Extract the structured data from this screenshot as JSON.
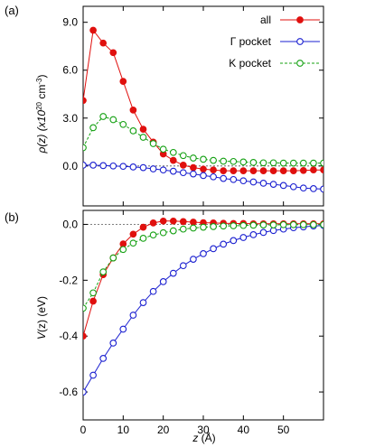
{
  "chart_data": [
    {
      "panel_label": "(a)",
      "type": "line",
      "ylabel": {
        "main": "ρ(z) (x10",
        "sup_exp": "20",
        "mid": " cm",
        "sup_unit": "-3",
        "end": ")"
      },
      "xlim": [
        0,
        60
      ],
      "ylim": [
        -2.5,
        10.0
      ],
      "yticks": [
        0.0,
        3.0,
        6.0,
        9.0
      ],
      "ytick_labels": [
        "0.0",
        "3.0",
        "6.0",
        "9.0"
      ],
      "legend_position": "top-right",
      "series": [
        {
          "name": "all",
          "color": "#e0100e",
          "marker": "filled-circle",
          "line": "solid",
          "x": [
            0,
            2.5,
            5,
            7.5,
            10,
            12.5,
            15,
            17.5,
            20,
            22.5,
            25,
            27.5,
            30,
            32.5,
            35,
            37.5,
            40,
            42.5,
            45,
            47.5,
            50,
            52.5,
            55,
            57.5,
            60
          ],
          "y": [
            4.1,
            8.5,
            7.7,
            7.1,
            5.3,
            3.5,
            2.3,
            1.5,
            0.75,
            0.35,
            0.05,
            -0.1,
            -0.2,
            -0.25,
            -0.3,
            -0.3,
            -0.3,
            -0.3,
            -0.3,
            -0.3,
            -0.3,
            -0.3,
            -0.28,
            -0.25,
            -0.25
          ]
        },
        {
          "name": "Γ pocket",
          "color": "#1a1fd0",
          "marker": "open-circle",
          "line": "solid",
          "x": [
            0,
            2.5,
            5,
            7.5,
            10,
            12.5,
            15,
            17.5,
            20,
            22.5,
            25,
            27.5,
            30,
            32.5,
            35,
            37.5,
            40,
            42.5,
            45,
            47.5,
            50,
            52.5,
            55,
            57.5,
            60
          ],
          "y": [
            0.05,
            0.05,
            0.02,
            0.0,
            -0.02,
            -0.06,
            -0.1,
            -0.18,
            -0.25,
            -0.33,
            -0.42,
            -0.5,
            -0.6,
            -0.68,
            -0.78,
            -0.85,
            -0.93,
            -1.0,
            -1.08,
            -1.15,
            -1.22,
            -1.3,
            -1.38,
            -1.42,
            -1.45
          ]
        },
        {
          "name": "K pocket",
          "color": "#14a012",
          "marker": "open-circle",
          "line": "dashed",
          "x": [
            0,
            2.5,
            5,
            7.5,
            10,
            12.5,
            15,
            17.5,
            20,
            22.5,
            25,
            27.5,
            30,
            32.5,
            35,
            37.5,
            40,
            42.5,
            45,
            47.5,
            50,
            52.5,
            55,
            57.5,
            60
          ],
          "y": [
            1.15,
            2.4,
            3.1,
            2.9,
            2.6,
            2.2,
            1.8,
            1.4,
            1.05,
            0.85,
            0.65,
            0.5,
            0.42,
            0.35,
            0.3,
            0.28,
            0.25,
            0.22,
            0.2,
            0.2,
            0.18,
            0.18,
            0.18,
            0.18,
            0.18
          ]
        }
      ]
    },
    {
      "panel_label": "(b)",
      "type": "line",
      "xlabel": {
        "italic": "z",
        "rest": " (Å)"
      },
      "ylabel": {
        "italic": "V",
        "rest": "(z) (eV)"
      },
      "xlim": [
        0,
        60
      ],
      "ylim": [
        -0.7,
        0.05
      ],
      "xticks": [
        0,
        10,
        20,
        30,
        40,
        50
      ],
      "xtick_labels": [
        "0",
        "10",
        "20",
        "30",
        "40",
        "50"
      ],
      "yticks": [
        0.0,
        -0.2,
        -0.4,
        -0.6
      ],
      "ytick_labels": [
        "0.0",
        "-0.2",
        "-0.4",
        "-0.6"
      ],
      "series": [
        {
          "name": "all",
          "color": "#e0100e",
          "marker": "filled-circle",
          "line": "solid",
          "x": [
            0,
            2.5,
            5,
            7.5,
            10,
            12.5,
            15,
            17.5,
            20,
            22.5,
            25,
            27.5,
            30,
            32.5,
            35,
            37.5,
            40,
            42.5,
            45,
            47.5,
            50,
            52.5,
            55,
            57.5,
            60
          ],
          "y": [
            -0.4,
            -0.275,
            -0.18,
            -0.12,
            -0.07,
            -0.035,
            -0.01,
            0.005,
            0.012,
            0.012,
            0.01,
            0.008,
            0.006,
            0.005,
            0.004,
            0.003,
            0.003,
            0.002,
            0.002,
            0.002,
            0.002,
            0.002,
            0.002,
            0.002,
            0.002
          ]
        },
        {
          "name": "Γ pocket",
          "color": "#1a1fd0",
          "marker": "open-circle",
          "line": "solid",
          "x": [
            0,
            2.5,
            5,
            7.5,
            10,
            12.5,
            15,
            17.5,
            20,
            22.5,
            25,
            27.5,
            30,
            32.5,
            35,
            37.5,
            40,
            42.5,
            45,
            47.5,
            50,
            52.5,
            55,
            57.5,
            60
          ],
          "y": [
            -0.6,
            -0.54,
            -0.48,
            -0.425,
            -0.375,
            -0.325,
            -0.28,
            -0.24,
            -0.205,
            -0.175,
            -0.148,
            -0.125,
            -0.105,
            -0.087,
            -0.071,
            -0.058,
            -0.047,
            -0.037,
            -0.029,
            -0.022,
            -0.017,
            -0.012,
            -0.009,
            -0.006,
            -0.004
          ]
        },
        {
          "name": "K pocket",
          "color": "#14a012",
          "marker": "open-circle",
          "line": "dashed",
          "x": [
            0,
            2.5,
            5,
            7.5,
            10,
            12.5,
            15,
            17.5,
            20,
            22.5,
            25,
            27.5,
            30,
            32.5,
            35,
            37.5,
            40,
            42.5,
            45,
            47.5,
            50,
            52.5,
            55,
            57.5,
            60
          ],
          "y": [
            -0.3,
            -0.245,
            -0.17,
            -0.12,
            -0.09,
            -0.067,
            -0.05,
            -0.038,
            -0.03,
            -0.023,
            -0.017,
            -0.013,
            -0.01,
            -0.008,
            -0.006,
            -0.005,
            -0.004,
            -0.003,
            -0.002,
            -0.002,
            -0.001,
            -0.001,
            -0.001,
            -0.001,
            -0.001
          ]
        }
      ]
    }
  ]
}
